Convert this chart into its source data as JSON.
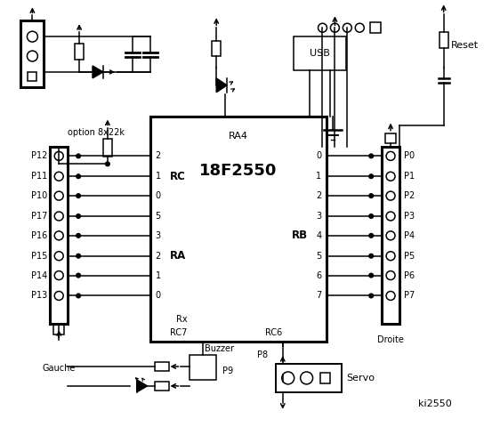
{
  "bg_color": "#ffffff",
  "fig_width": 5.53,
  "fig_height": 4.8,
  "dpi": 100,
  "title": "ki2550",
  "chip_label": "18F2550",
  "chip_sublabel": "RA4",
  "left_connector_pins": [
    "P12",
    "P11",
    "P10",
    "P17",
    "P16",
    "P15",
    "P14",
    "P13"
  ],
  "right_connector_pins": [
    "P0",
    "P1",
    "P2",
    "P3",
    "P4",
    "P5",
    "P6",
    "P7"
  ],
  "rc_nums": [
    "2",
    "1",
    "0"
  ],
  "ra_nums": [
    "5",
    "3",
    "2",
    "1",
    "0"
  ],
  "rb_nums": [
    "0",
    "1",
    "2",
    "3",
    "4",
    "5",
    "6",
    "7"
  ],
  "label_gauche": "Gauche",
  "label_droite": "Droite",
  "label_usb": "USB",
  "label_reset": "Reset",
  "label_servo": "Servo",
  "label_buzzer": "Buzzer",
  "label_p9": "P9",
  "label_p8": "P8",
  "label_rc": "RC",
  "label_ra": "RA",
  "label_rb": "RB",
  "label_rx": "Rx",
  "label_rc7": "RC7",
  "label_rc6": "RC6",
  "label_option": "option 8x22k"
}
